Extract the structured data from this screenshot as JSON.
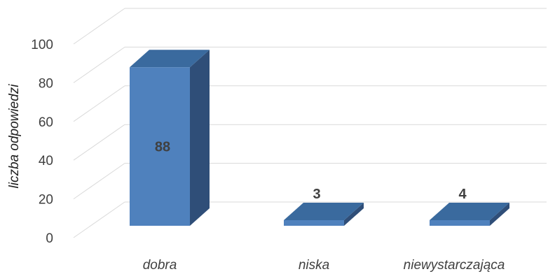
{
  "chart_data": {
    "type": "bar",
    "style": "3d-column",
    "categories": [
      "dobra",
      "niska",
      "niewystarczająca"
    ],
    "values": [
      88,
      3,
      4
    ],
    "data_labels": [
      "88",
      "3",
      "4"
    ],
    "title": "",
    "xlabel": "",
    "ylabel": "liczba odpowiedzi",
    "ylim": [
      0,
      100
    ],
    "yticks": [
      "0",
      "20",
      "40",
      "60",
      "80",
      "100"
    ],
    "grid": true,
    "legend": "none",
    "colors": {
      "bar_front": "#4F81BD",
      "bar_top": "#3A6A9E",
      "bar_side": "#2F4E78",
      "gridline": "#D9D9D9",
      "text": "#404040"
    }
  }
}
